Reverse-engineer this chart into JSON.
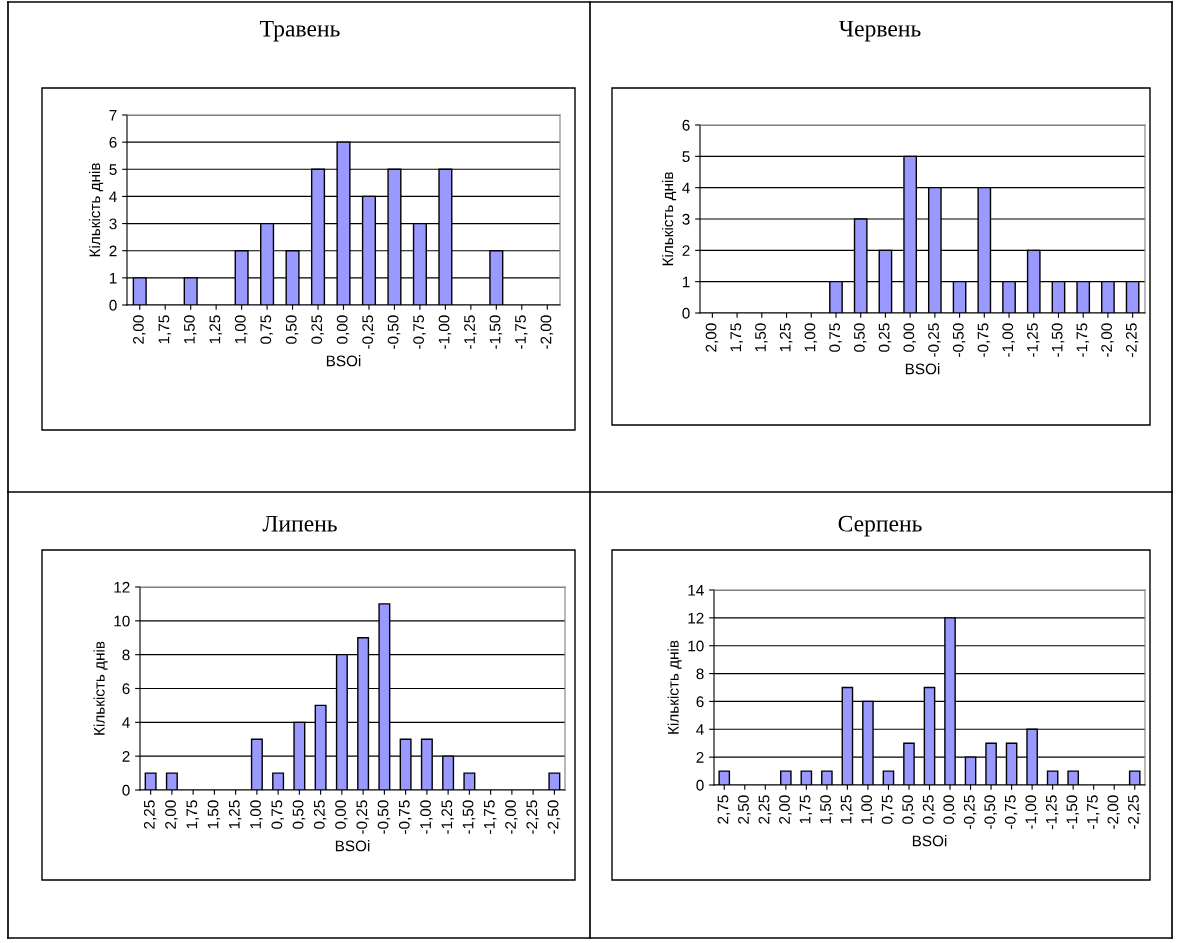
{
  "chart_data": [
    {
      "type": "bar",
      "title": "Травень",
      "xlabel": "BSOi",
      "ylabel": "Кількість днів",
      "color": "#9999ff",
      "grid": "y",
      "ylim": [
        0,
        7
      ],
      "yticks": [
        0,
        1,
        2,
        3,
        4,
        5,
        6,
        7
      ],
      "categories": [
        "2,00",
        "1,75",
        "1,50",
        "1,25",
        "1,00",
        "0,75",
        "0,50",
        "0,25",
        "0,00",
        "-0,25",
        "-0,50",
        "-0,75",
        "-1,00",
        "-1,25",
        "-1,50",
        "-1,75",
        "-2,00"
      ],
      "values": [
        1,
        0,
        1,
        0,
        2,
        3,
        2,
        5,
        6,
        4,
        5,
        3,
        5,
        0,
        2,
        0,
        0
      ]
    },
    {
      "type": "bar",
      "title": "Червень",
      "xlabel": "BSOi",
      "ylabel": "Кількість днів",
      "color": "#9999ff",
      "grid": "y",
      "ylim": [
        0,
        6
      ],
      "yticks": [
        0,
        1,
        2,
        3,
        4,
        5,
        6
      ],
      "categories": [
        "2,00",
        "1,75",
        "1,50",
        "1,25",
        "1,00",
        "0,75",
        "0,50",
        "0,25",
        "0,00",
        "-0,25",
        "-0,50",
        "-0,75",
        "-1,00",
        "-1,25",
        "-1,50",
        "-1,75",
        "-2,00",
        "-2,25"
      ],
      "values": [
        0,
        0,
        0,
        0,
        0,
        1,
        3,
        2,
        5,
        4,
        1,
        4,
        1,
        2,
        1,
        1,
        1,
        1
      ]
    },
    {
      "type": "bar",
      "title": "Липень",
      "xlabel": "BSOi",
      "ylabel": "Кількість днів",
      "color": "#9999ff",
      "grid": "y",
      "ylim": [
        0,
        12
      ],
      "yticks": [
        0,
        2,
        4,
        6,
        8,
        10,
        12
      ],
      "categories": [
        "2,25",
        "2,00",
        "1,75",
        "1,50",
        "1,25",
        "1,00",
        "0,75",
        "0,50",
        "0,25",
        "0,00",
        "-0,25",
        "-0,50",
        "-0,75",
        "-1,00",
        "-1,25",
        "-1,50",
        "-1,75",
        "-2,00",
        "-2,25",
        "-2,50"
      ],
      "values": [
        1,
        1,
        0,
        0,
        0,
        3,
        1,
        4,
        5,
        8,
        9,
        11,
        3,
        3,
        2,
        1,
        0,
        0,
        0,
        1
      ]
    },
    {
      "type": "bar",
      "title": "Серпень",
      "xlabel": "BSOi",
      "ylabel": "Кількість днів",
      "color": "#9999ff",
      "grid": "y",
      "ylim": [
        0,
        14
      ],
      "yticks": [
        0,
        2,
        4,
        6,
        8,
        10,
        12,
        14
      ],
      "categories": [
        "2,75",
        "2,50",
        "2,25",
        "2,00",
        "1,75",
        "1,50",
        "1,25",
        "1,00",
        "0,75",
        "0,50",
        "0,25",
        "0,00",
        "-0,25",
        "-0,50",
        "-0,75",
        "-1,00",
        "-1,25",
        "-1,50",
        "-1,75",
        "-2,00",
        "-2,25"
      ],
      "values": [
        1,
        0,
        0,
        1,
        1,
        1,
        7,
        6,
        1,
        3,
        7,
        12,
        2,
        3,
        3,
        4,
        1,
        1,
        0,
        0,
        1
      ]
    }
  ]
}
